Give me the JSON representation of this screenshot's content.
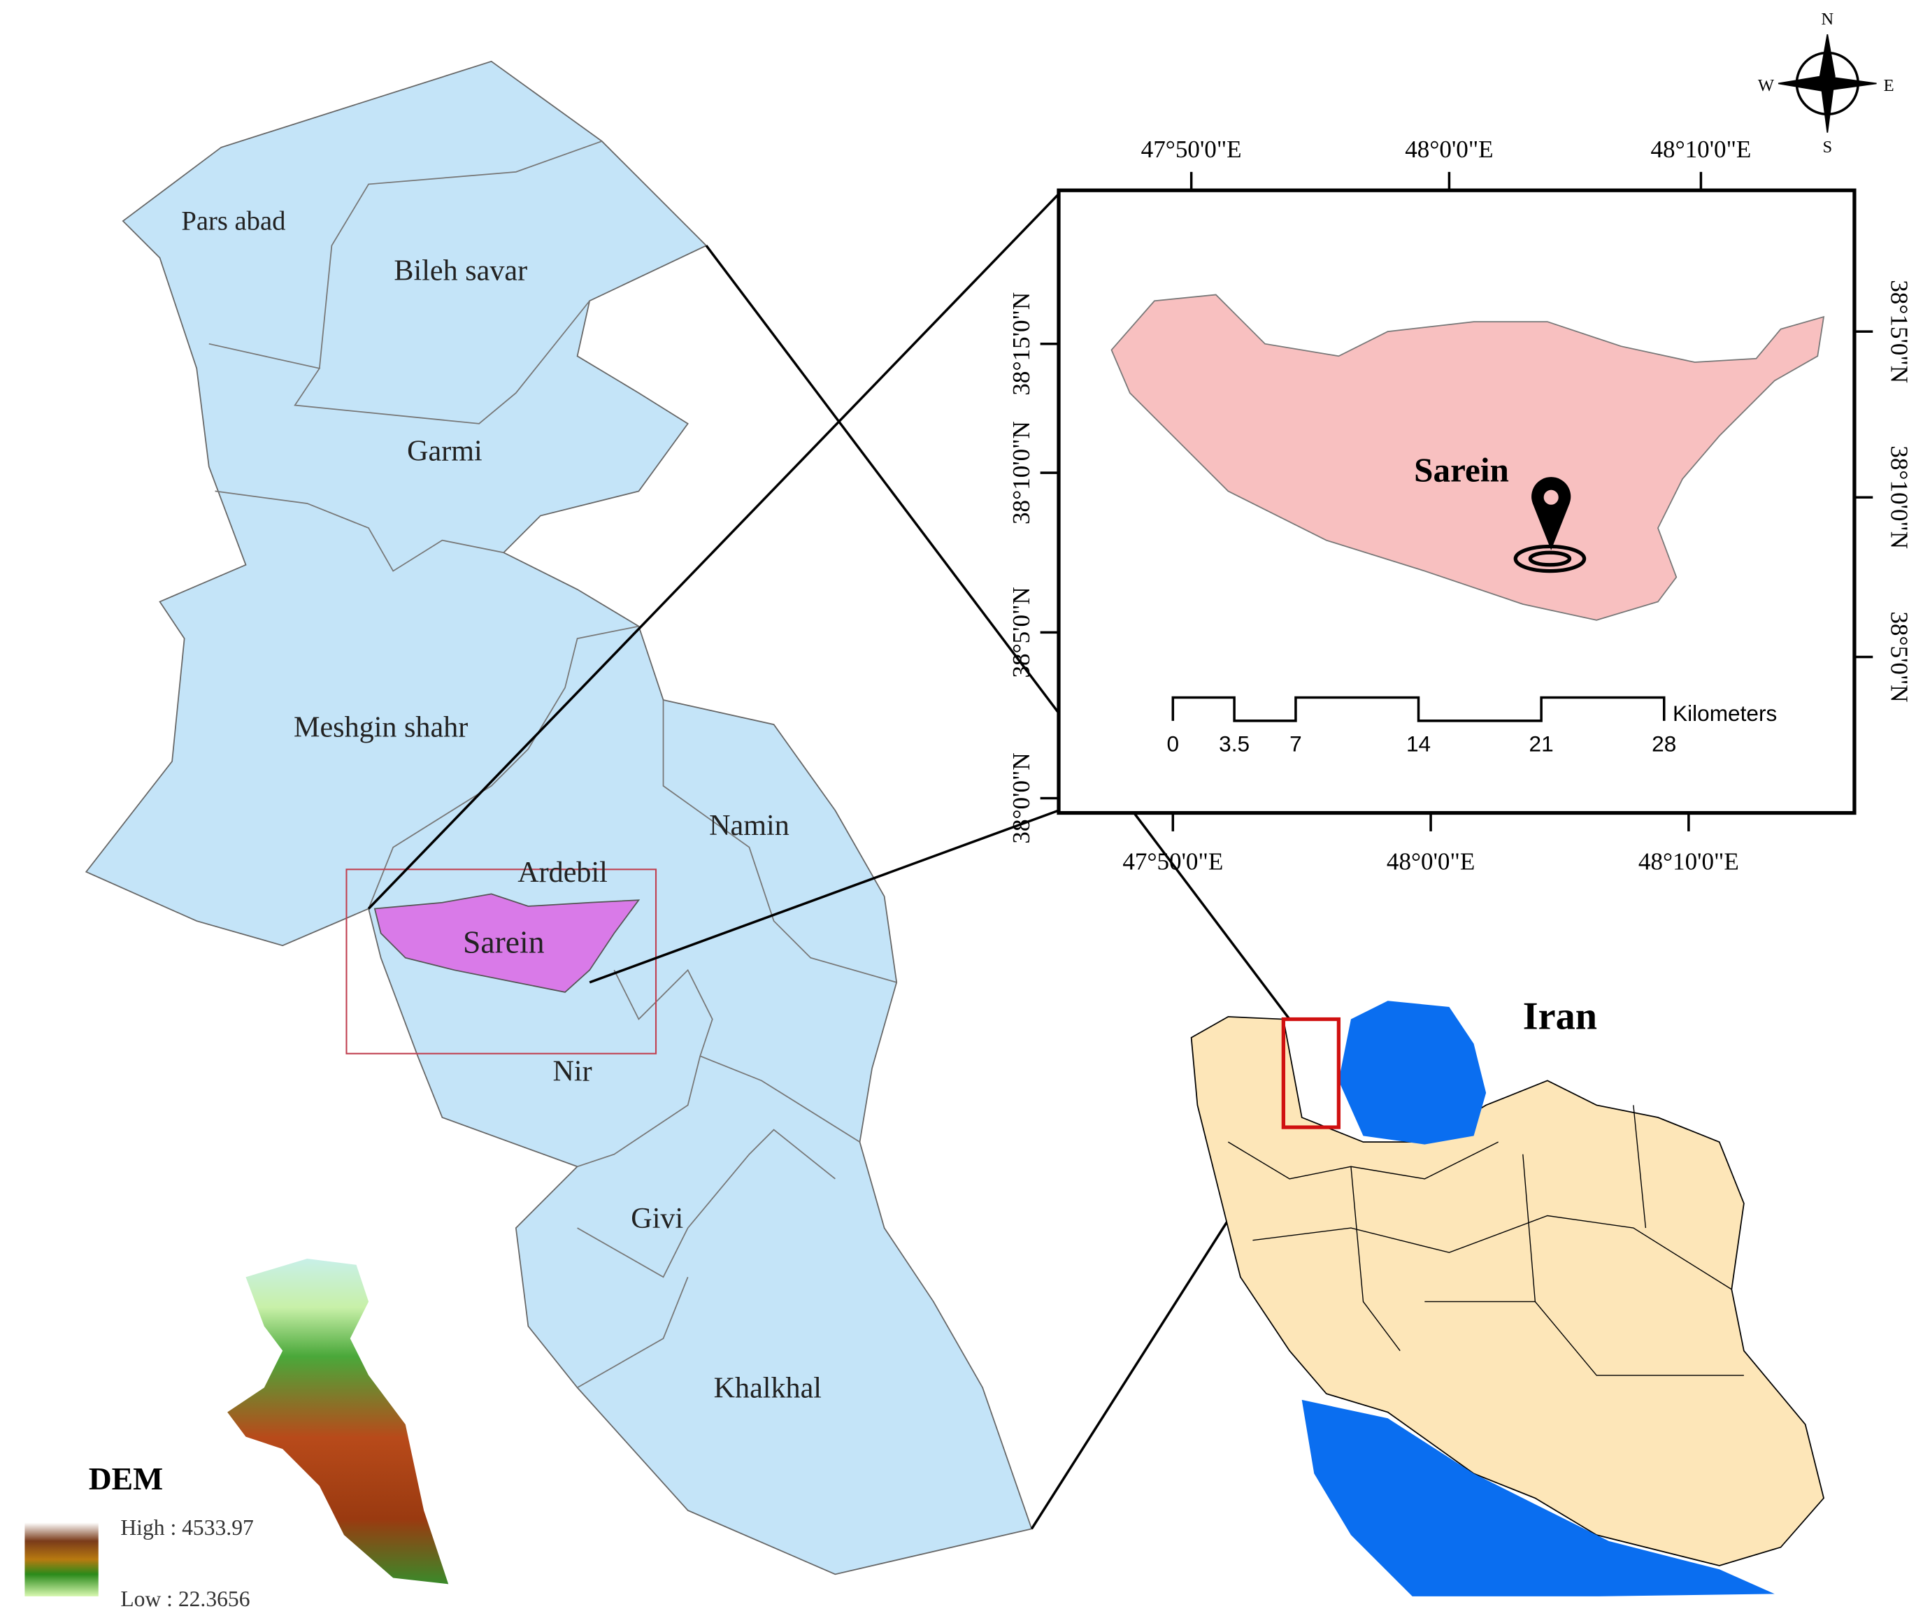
{
  "counties": [
    "Pars abad",
    "Bileh savar",
    "Garmi",
    "Meshgin shahr",
    "Namin",
    "Ardebil",
    "Sarein",
    "Nir",
    "Givi",
    "Khalkhal"
  ],
  "inset": {
    "label": "Sarein",
    "top_lon": [
      "47°50'0\"E",
      "48°0'0\"E",
      "48°10'0\"E"
    ],
    "bottom_lon": [
      "47°50'0\"E",
      "48°0'0\"E",
      "48°10'0\"E"
    ],
    "left_lat": [
      "38°15'0\"N",
      "38°10'0\"N",
      "38°5'0\"N",
      "38°0'0\"N"
    ],
    "right_lat": [
      "38°15'0\"N",
      "38°10'0\"N",
      "38°5'0\"N"
    ],
    "scale": {
      "ticks": [
        0,
        3.5,
        7,
        14,
        21,
        28
      ],
      "unit": "Kilometers"
    }
  },
  "locator": {
    "label": "Iran"
  },
  "legend": {
    "title": "DEM",
    "high": "High : 4533.97",
    "low": "Low : 22.3656"
  },
  "compass": [
    "N",
    "E",
    "S",
    "W"
  ]
}
